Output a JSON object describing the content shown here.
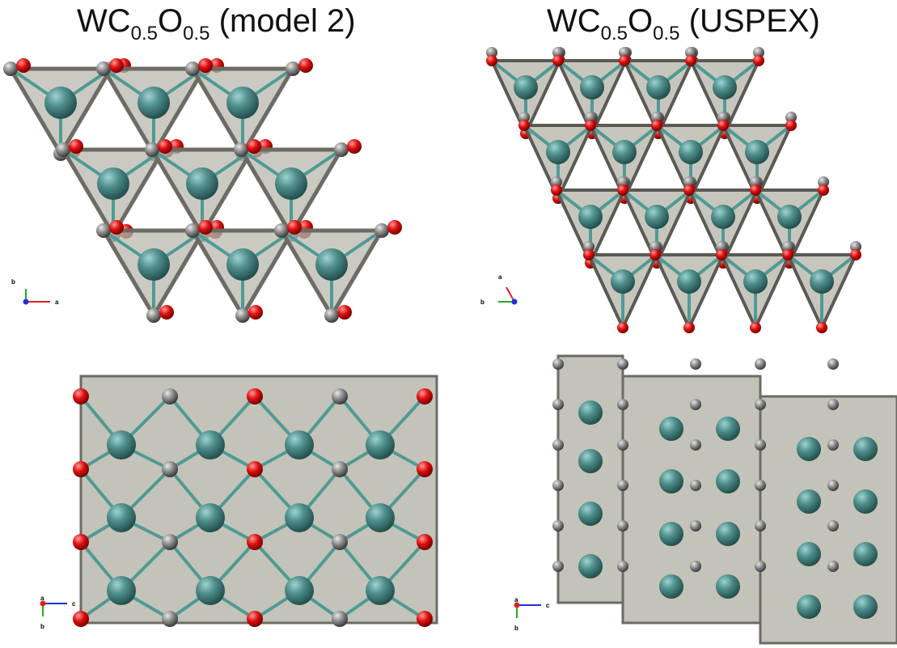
{
  "titles": {
    "left": {
      "base": "WC",
      "sub1": "0.5",
      "mid": "O",
      "sub2": "0.5",
      "suffix": " (model 2)"
    },
    "right": {
      "base": "WC",
      "sub1": "0.5",
      "mid": "O",
      "sub2": "0.5",
      "suffix": " (USPEX)"
    }
  },
  "axes": {
    "top_left": {
      "vertical": "b",
      "horizontal": "a"
    },
    "top_right": {
      "vertical": "a",
      "horizontal": "b"
    },
    "bottom_left": {
      "horizontal": "c",
      "vertical": "b",
      "origin": "a"
    },
    "bottom_right": {
      "horizontal": "c",
      "vertical": "b",
      "origin": "a"
    }
  },
  "colors": {
    "tungsten": "#4f8f8c",
    "carbon": "#8c8c8c",
    "oxygen": "#e01010",
    "polyhedron": "#b9b8ad",
    "axis_a_red": "#e02020",
    "axis_b_green": "#20b020",
    "axis_c_blue": "#2030e0"
  }
}
